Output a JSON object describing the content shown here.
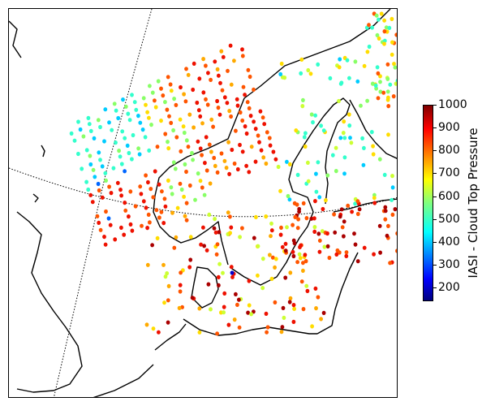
{
  "colorbar": {
    "title": "IASI - Cloud Top Pressure",
    "min": 140,
    "max": 1000,
    "ticks": [
      200,
      300,
      400,
      500,
      600,
      700,
      800,
      900,
      1000
    ]
  },
  "colors": {
    "c150": "#0000cc",
    "c250": "#0066ff",
    "c350": "#00ccff",
    "c450": "#33ffcc",
    "c550": "#88ff66",
    "c650": "#ccff33",
    "c720": "#ffdd00",
    "c800": "#ffaa00",
    "c870": "#ff5500",
    "c930": "#ee1100",
    "c980": "#aa0000"
  }
}
